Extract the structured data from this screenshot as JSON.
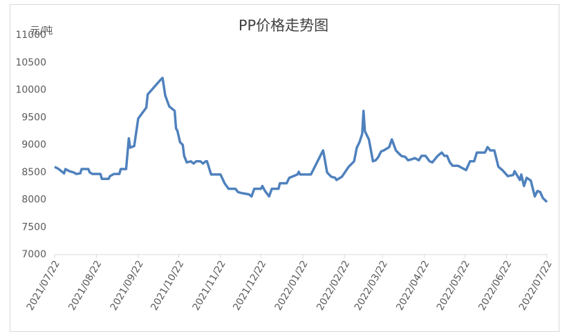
{
  "chart_data": {
    "type": "line",
    "title": "PP价格走势图",
    "y_label": "元/吨",
    "color": "#4f81bd",
    "x": [
      "2021/07/22",
      "2021/07/25",
      "2021/07/29",
      "2021/07/30",
      "2021/08/02",
      "2021/08/05",
      "2021/08/07",
      "2021/08/10",
      "2021/08/11",
      "2021/08/16",
      "2021/08/17",
      "2021/08/19",
      "2021/08/25",
      "2021/08/26",
      "2021/08/31",
      "2021/09/01",
      "2021/09/04",
      "2021/09/08",
      "2021/09/09",
      "2021/09/13",
      "2021/09/15",
      "2021/09/16",
      "2021/09/19",
      "2021/09/22",
      "2021/09/28",
      "2021/09/29",
      "2021/10/09",
      "2021/10/10",
      "2021/10/12",
      "2021/10/15",
      "2021/10/19",
      "2021/10/20",
      "2021/10/21",
      "2021/10/23",
      "2021/10/25",
      "2021/10/26",
      "2021/10/28",
      "2021/10/31",
      "2021/11/02",
      "2021/11/04",
      "2021/11/07",
      "2021/11/09",
      "2021/11/11",
      "2021/11/12",
      "2021/11/15",
      "2021/11/22",
      "2021/11/25",
      "2021/11/28",
      "2021/12/03",
      "2021/12/05",
      "2021/12/08",
      "2021/12/13",
      "2021/12/15",
      "2021/12/17",
      "2021/12/22",
      "2021/12/23",
      "2021/12/25",
      "2021/12/28",
      "2021/12/30",
      "2022/01/04",
      "2022/01/05",
      "2022/01/10",
      "2022/01/12",
      "2022/01/18",
      "2022/01/19",
      "2022/01/20",
      "2022/01/28",
      "2022/02/06",
      "2022/02/07",
      "2022/02/09",
      "2022/02/12",
      "2022/02/15",
      "2022/02/16",
      "2022/02/20",
      "2022/02/25",
      "2022/03/01",
      "2022/03/03",
      "2022/03/05",
      "2022/03/07",
      "2022/03/08",
      "2022/03/09",
      "2022/03/12",
      "2022/03/15",
      "2022/03/17",
      "2022/03/19",
      "2022/03/21",
      "2022/03/23",
      "2022/03/27",
      "2022/03/29",
      "2022/04/01",
      "2022/04/05",
      "2022/04/08",
      "2022/04/10",
      "2022/04/13",
      "2022/04/15",
      "2022/04/18",
      "2022/04/20",
      "2022/04/23",
      "2022/04/26",
      "2022/04/28",
      "2022/05/02",
      "2022/05/05",
      "2022/05/07",
      "2022/05/09",
      "2022/05/11",
      "2022/05/13",
      "2022/05/17",
      "2022/05/20",
      "2022/05/23",
      "2022/05/26",
      "2022/05/29",
      "2022/05/31",
      "2022/06/06",
      "2022/06/08",
      "2022/06/10",
      "2022/06/13",
      "2022/06/16",
      "2022/06/19",
      "2022/06/23",
      "2022/06/27",
      "2022/06/28",
      "2022/07/02",
      "2022/07/03",
      "2022/07/05",
      "2022/07/07",
      "2022/07/10",
      "2022/07/13",
      "2022/07/15",
      "2022/07/17",
      "2022/07/19",
      "2022/07/22"
    ],
    "values": [
      8600,
      8560,
      8480,
      8560,
      8520,
      8500,
      8470,
      8480,
      8560,
      8560,
      8500,
      8470,
      8470,
      8380,
      8380,
      8430,
      8470,
      8470,
      8560,
      8560,
      9120,
      8950,
      8980,
      9480,
      9680,
      9920,
      10200,
      10220,
      9900,
      9700,
      9620,
      9300,
      9260,
      9050,
      9000,
      8800,
      8680,
      8700,
      8660,
      8700,
      8700,
      8660,
      8700,
      8700,
      8460,
      8460,
      8300,
      8200,
      8200,
      8140,
      8120,
      8100,
      8060,
      8200,
      8200,
      8250,
      8160,
      8060,
      8200,
      8200,
      8300,
      8300,
      8400,
      8460,
      8510,
      8460,
      8460,
      8900,
      8780,
      8500,
      8420,
      8400,
      8360,
      8420,
      8600,
      8700,
      8950,
      9050,
      9200,
      9620,
      9250,
      9100,
      8700,
      8720,
      8780,
      8880,
      8900,
      8960,
      9100,
      8900,
      8800,
      8780,
      8720,
      8740,
      8760,
      8720,
      8800,
      8800,
      8700,
      8680,
      8800,
      8860,
      8800,
      8800,
      8680,
      8620,
      8620,
      8580,
      8540,
      8700,
      8700,
      8860,
      8860,
      8960,
      8900,
      8900,
      8600,
      8540,
      8430,
      8450,
      8520,
      8360,
      8460,
      8250,
      8400,
      8350,
      8060,
      8160,
      8140,
      8030,
      7960
    ],
    "xlim": [
      "2021/07/22",
      "2022/07/22"
    ],
    "xticks": [
      "2021/07/22",
      "2021/08/22",
      "2021/09/22",
      "2021/10/22",
      "2021/11/22",
      "2021/12/22",
      "2022/01/22",
      "2022/02/22",
      "2022/03/22",
      "2022/04/22",
      "2022/05/22",
      "2022/06/22",
      "2022/07/22"
    ],
    "ylim": [
      7000,
      11000
    ],
    "yticks": [
      7000,
      7500,
      8000,
      8500,
      9000,
      9500,
      10000,
      10500,
      11000
    ]
  }
}
